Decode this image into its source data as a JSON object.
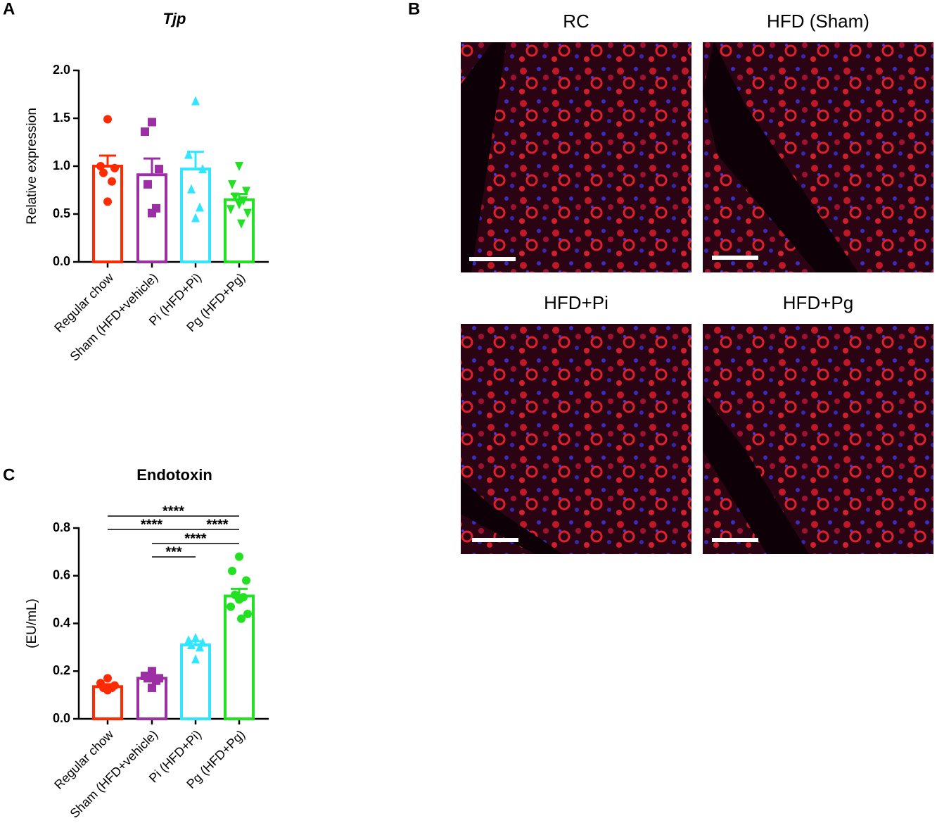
{
  "panel_labels": [
    "A",
    "B",
    "C"
  ],
  "chart_data": [
    {
      "type": "bar",
      "title": "Tjp",
      "y_label": "Relative expression",
      "categories": [
        "Regular chow",
        "Sham (HFD+vehicle)",
        "Pi (HFD+Pi)",
        "Pg (HFD+Pg)"
      ],
      "colors": [
        "#ff2a00",
        "#9b2fa3",
        "#33e6ff",
        "#22e022"
      ],
      "markers": [
        "circle",
        "square",
        "triangle-up",
        "triangle-down"
      ],
      "values": [
        1.0,
        0.91,
        0.97,
        0.65
      ],
      "errors": [
        0.11,
        0.17,
        0.18,
        0.06
      ],
      "points": [
        [
          1.49,
          1.0,
          0.98,
          0.93,
          0.84,
          0.63
        ],
        [
          1.46,
          1.36,
          0.97,
          0.81,
          0.56,
          0.51
        ],
        [
          1.68,
          1.12,
          0.97,
          0.76,
          0.57,
          0.46
        ],
        [
          1.0,
          0.81,
          0.74,
          0.68,
          0.64,
          0.6,
          0.55,
          0.51,
          0.4
        ]
      ],
      "ylim": [
        0,
        2
      ],
      "yticks": [
        {
          "value": 0,
          "label": "0.0"
        },
        0.5,
        {
          "value": 1,
          "label": "1.0"
        },
        1.5,
        {
          "value": 2,
          "label": "2.0"
        }
      ]
    },
    {
      "type": "bar",
      "title": "Endotoxin",
      "y_label": "(EU/mL)",
      "categories": [
        "Regular chow",
        "Sham (HFD+vehicle)",
        "Pi (HFD+Pi)",
        "Pg (HFD+Pg)"
      ],
      "colors": [
        "#ff2a00",
        "#9b2fa3",
        "#33e6ff",
        "#22e022"
      ],
      "markers": [
        "circle",
        "square",
        "triangle-up",
        "circle"
      ],
      "values": [
        0.135,
        0.17,
        0.31,
        0.515
      ],
      "errors": [
        0.01,
        0.01,
        0.015,
        0.03
      ],
      "points": [
        [
          0.17,
          0.15,
          0.14,
          0.13,
          0.13,
          0.12
        ],
        [
          0.2,
          0.18,
          0.17,
          0.17,
          0.16,
          0.13
        ],
        [
          0.34,
          0.33,
          0.32,
          0.31,
          0.3,
          0.25
        ],
        [
          0.68,
          0.62,
          0.58,
          0.52,
          0.51,
          0.5,
          0.47,
          0.44,
          0.42
        ]
      ],
      "ylim": [
        0,
        0.8
      ],
      "yticks": [
        {
          "value": 0,
          "label": "0.0"
        },
        0.2,
        0.4,
        0.6,
        0.8
      ],
      "comparisons": [
        {
          "label": "****",
          "groups": [
            0,
            3
          ]
        },
        {
          "label": "****",
          "groups": [
            0,
            2
          ]
        },
        {
          "label": "****",
          "groups": [
            2,
            3
          ]
        },
        {
          "label": "****",
          "groups": [
            1,
            3
          ]
        },
        {
          "label": "***",
          "groups": [
            1,
            2
          ]
        }
      ]
    }
  ],
  "images": [
    {
      "title": "RC"
    },
    {
      "title": "HFD (Sham)"
    },
    {
      "title": "HFD+Pi"
    },
    {
      "title": "HFD+Pg"
    }
  ]
}
